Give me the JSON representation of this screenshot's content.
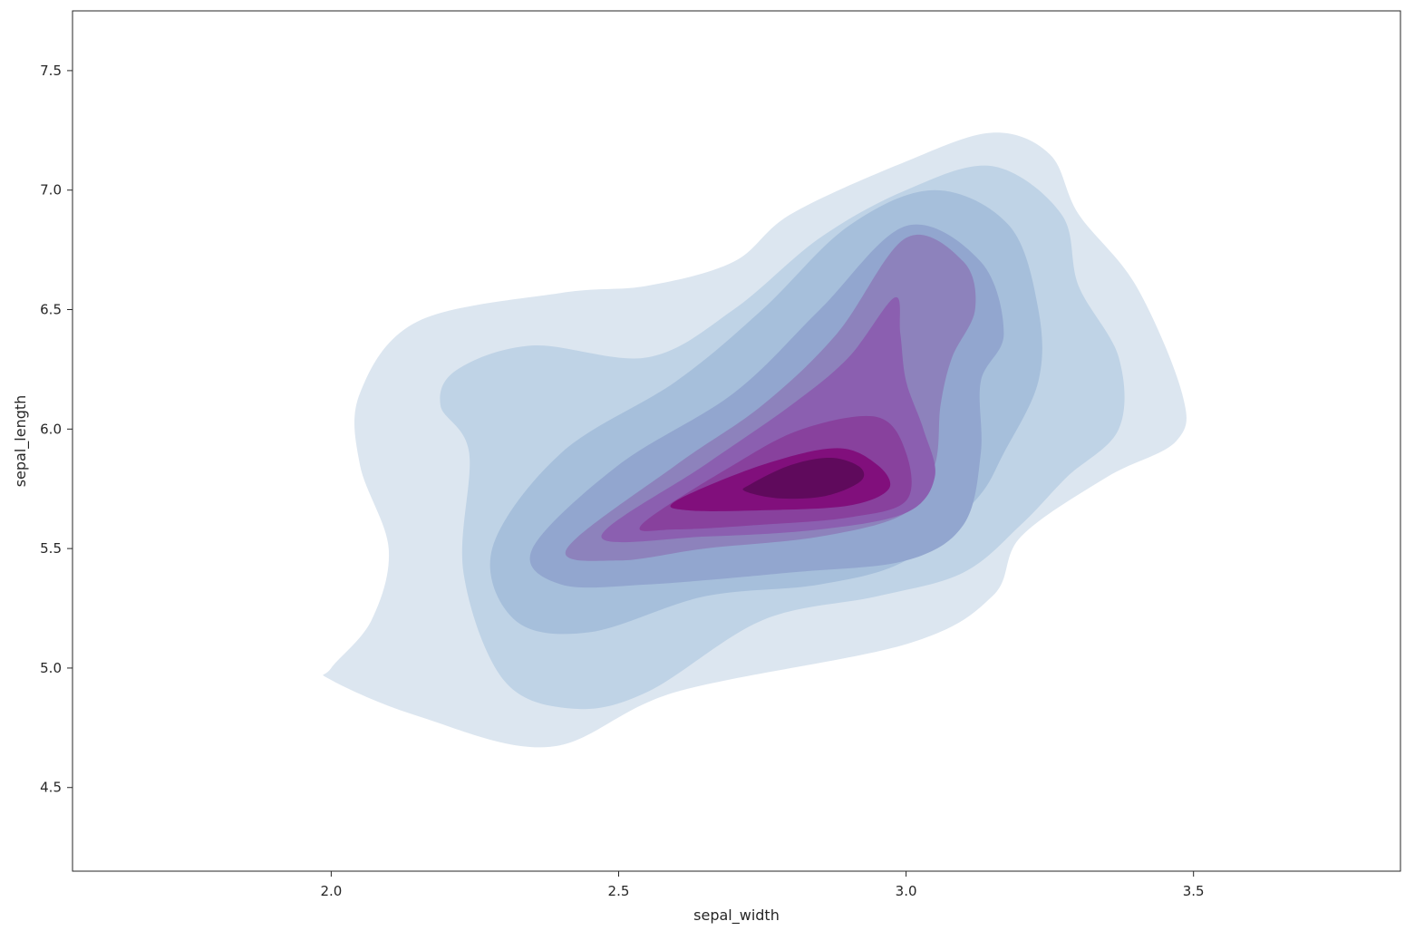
{
  "chart_data": {
    "type": "contour",
    "title": "",
    "xlabel": "sepal_width",
    "ylabel": "sepal_length",
    "xlim": [
      1.55,
      3.86
    ],
    "ylim": [
      4.15,
      7.75
    ],
    "x_ticks": [
      2.0,
      2.5,
      3.0,
      3.5
    ],
    "x_tick_labels": [
      "2.0",
      "2.5",
      "3.0",
      "3.5"
    ],
    "y_ticks": [
      4.5,
      5.0,
      5.5,
      6.0,
      6.5,
      7.0,
      7.5
    ],
    "y_tick_labels": [
      "4.5",
      "5.0",
      "5.5",
      "6.0",
      "6.5",
      "7.0",
      "7.5"
    ],
    "grid": false,
    "legend": "none",
    "colormap": "BuPu",
    "filled": true,
    "density_peak": {
      "x": 2.82,
      "y": 5.82
    },
    "levels": [
      {
        "level": 1,
        "color": "#dce6f0",
        "points": [
          [
            2.0,
            5.0
          ],
          [
            2.07,
            5.2
          ],
          [
            2.1,
            5.5
          ],
          [
            2.05,
            5.85
          ],
          [
            2.05,
            6.15
          ],
          [
            2.15,
            6.45
          ],
          [
            2.4,
            6.57
          ],
          [
            2.55,
            6.6
          ],
          [
            2.7,
            6.7
          ],
          [
            2.8,
            6.9
          ],
          [
            3.0,
            7.12
          ],
          [
            3.15,
            7.24
          ],
          [
            3.25,
            7.15
          ],
          [
            3.3,
            6.9
          ],
          [
            3.4,
            6.6
          ],
          [
            3.48,
            6.15
          ],
          [
            3.47,
            5.95
          ],
          [
            3.35,
            5.8
          ],
          [
            3.2,
            5.55
          ],
          [
            3.15,
            5.3
          ],
          [
            3.0,
            5.1
          ],
          [
            2.6,
            4.9
          ],
          [
            2.38,
            4.67
          ],
          [
            2.15,
            4.8
          ],
          [
            2.0,
            4.95
          ]
        ]
      },
      {
        "level": 2,
        "color": "#bfd3e6",
        "points": [
          [
            2.24,
            5.9
          ],
          [
            2.19,
            6.1
          ],
          [
            2.22,
            6.25
          ],
          [
            2.35,
            6.35
          ],
          [
            2.55,
            6.3
          ],
          [
            2.7,
            6.5
          ],
          [
            2.85,
            6.8
          ],
          [
            3.0,
            7.0
          ],
          [
            3.15,
            7.1
          ],
          [
            3.27,
            6.9
          ],
          [
            3.3,
            6.6
          ],
          [
            3.37,
            6.3
          ],
          [
            3.37,
            6.0
          ],
          [
            3.28,
            5.8
          ],
          [
            3.2,
            5.6
          ],
          [
            3.1,
            5.4
          ],
          [
            2.95,
            5.3
          ],
          [
            2.75,
            5.2
          ],
          [
            2.55,
            4.9
          ],
          [
            2.42,
            4.83
          ],
          [
            2.3,
            4.95
          ],
          [
            2.23,
            5.4
          ]
        ]
      },
      {
        "level": 3,
        "color": "#a6bfdb",
        "points": [
          [
            2.28,
            5.5
          ],
          [
            2.4,
            5.9
          ],
          [
            2.6,
            6.2
          ],
          [
            2.75,
            6.5
          ],
          [
            2.9,
            6.85
          ],
          [
            3.05,
            7.0
          ],
          [
            3.18,
            6.85
          ],
          [
            3.23,
            6.5
          ],
          [
            3.23,
            6.2
          ],
          [
            3.17,
            5.9
          ],
          [
            3.12,
            5.7
          ],
          [
            3.0,
            5.45
          ],
          [
            2.85,
            5.35
          ],
          [
            2.65,
            5.3
          ],
          [
            2.45,
            5.15
          ],
          [
            2.32,
            5.2
          ]
        ]
      },
      {
        "level": 4,
        "color": "#92a6cf",
        "points": [
          [
            2.35,
            5.5
          ],
          [
            2.5,
            5.85
          ],
          [
            2.7,
            6.15
          ],
          [
            2.85,
            6.5
          ],
          [
            3.0,
            6.85
          ],
          [
            3.13,
            6.7
          ],
          [
            3.17,
            6.4
          ],
          [
            3.13,
            6.2
          ],
          [
            3.13,
            5.9
          ],
          [
            3.1,
            5.6
          ],
          [
            3.0,
            5.45
          ],
          [
            2.8,
            5.4
          ],
          [
            2.55,
            5.35
          ],
          [
            2.4,
            5.35
          ]
        ]
      },
      {
        "level": 5,
        "color": "#8d82bc",
        "points": [
          [
            2.41,
            5.5
          ],
          [
            2.6,
            5.85
          ],
          [
            2.75,
            6.1
          ],
          [
            2.88,
            6.4
          ],
          [
            3.0,
            6.8
          ],
          [
            3.1,
            6.7
          ],
          [
            3.12,
            6.5
          ],
          [
            3.08,
            6.3
          ],
          [
            3.06,
            6.1
          ],
          [
            3.05,
            5.85
          ],
          [
            3.0,
            5.65
          ],
          [
            2.85,
            5.55
          ],
          [
            2.65,
            5.5
          ],
          [
            2.5,
            5.45
          ]
        ]
      },
      {
        "level": 6,
        "color": "#8b5fb0",
        "points": [
          [
            2.47,
            5.55
          ],
          [
            2.65,
            5.85
          ],
          [
            2.8,
            6.1
          ],
          [
            2.9,
            6.3
          ],
          [
            2.98,
            6.55
          ],
          [
            2.99,
            6.4
          ],
          [
            3.0,
            6.2
          ],
          [
            3.03,
            6.0
          ],
          [
            3.05,
            5.8
          ],
          [
            3.0,
            5.65
          ],
          [
            2.85,
            5.58
          ],
          [
            2.65,
            5.55
          ]
        ]
      },
      {
        "level": 7,
        "color": "#88419d",
        "points": [
          [
            2.54,
            5.6
          ],
          [
            2.7,
            5.85
          ],
          [
            2.82,
            6.0
          ],
          [
            2.95,
            6.05
          ],
          [
            3.0,
            5.9
          ],
          [
            3.0,
            5.7
          ],
          [
            2.9,
            5.63
          ],
          [
            2.75,
            5.6
          ],
          [
            2.6,
            5.58
          ]
        ]
      },
      {
        "level": 8,
        "color": "#810f7c",
        "points": [
          [
            2.6,
            5.7
          ],
          [
            2.75,
            5.85
          ],
          [
            2.88,
            5.92
          ],
          [
            2.95,
            5.85
          ],
          [
            2.97,
            5.75
          ],
          [
            2.9,
            5.68
          ],
          [
            2.75,
            5.66
          ],
          [
            2.62,
            5.66
          ]
        ]
      },
      {
        "level": 9,
        "color": "#5f0a5c",
        "points": [
          [
            2.73,
            5.77
          ],
          [
            2.8,
            5.85
          ],
          [
            2.87,
            5.88
          ],
          [
            2.92,
            5.84
          ],
          [
            2.92,
            5.78
          ],
          [
            2.86,
            5.72
          ],
          [
            2.78,
            5.71
          ],
          [
            2.72,
            5.74
          ]
        ]
      }
    ]
  }
}
